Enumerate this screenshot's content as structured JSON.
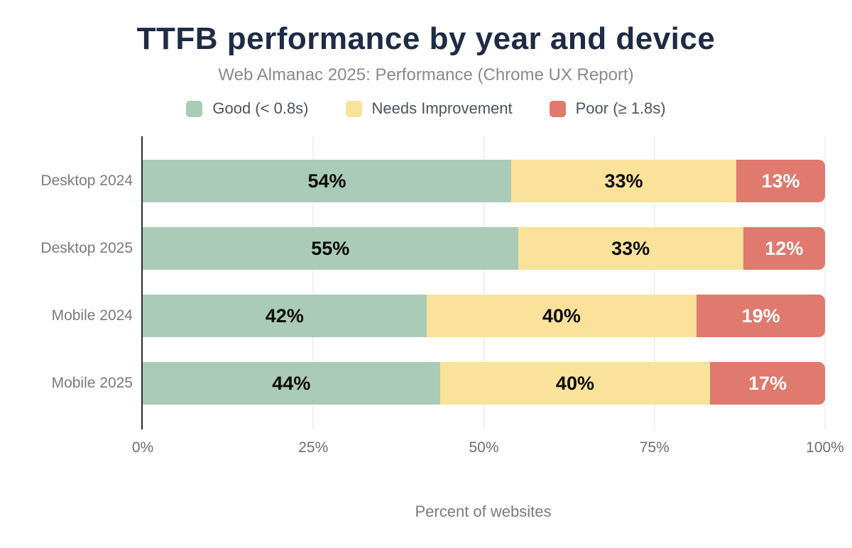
{
  "chart_data": {
    "type": "bar",
    "orientation": "horizontal",
    "stacked": true,
    "title": "TTFB performance by year and device",
    "subtitle": "Web Almanac 2025: Performance (Chrome UX Report)",
    "xlabel": "Percent of websites",
    "unit": "%",
    "categories": [
      "Desktop 2024",
      "Desktop 2025",
      "Mobile 2024",
      "Mobile 2025"
    ],
    "series": [
      {
        "name": "Good (< 0.8s)",
        "color": "#a9cbb7",
        "label_color": "#0a0a0a",
        "values": [
          54,
          55,
          42,
          44
        ]
      },
      {
        "name": "Needs Improvement",
        "color": "#fbe29a",
        "label_color": "#0a0a0a",
        "values": [
          33,
          33,
          40,
          40
        ]
      },
      {
        "name": "Poor (≥ 1.8s)",
        "color": "#e0796e",
        "label_color": "#ffffff",
        "values": [
          13,
          12,
          19,
          17
        ]
      }
    ],
    "x_ticks": [
      {
        "label": "0%",
        "pos": 0
      },
      {
        "label": "25%",
        "pos": 25
      },
      {
        "label": "50%",
        "pos": 50
      },
      {
        "label": "75%",
        "pos": 75
      },
      {
        "label": "100%",
        "pos": 100
      }
    ],
    "xlim": [
      0,
      100
    ],
    "legend_position": "top",
    "grid": "vertical"
  },
  "colors": {
    "title": "#1f2b45",
    "subtitle": "#8a8a8a",
    "legend_text": "#4d545d",
    "category_label": "#7b7b7b",
    "tick_label": "#6f6f6f",
    "axis_line": "#2e2e2e",
    "gridline": "#f1f1f2",
    "background": "#ffffff"
  }
}
